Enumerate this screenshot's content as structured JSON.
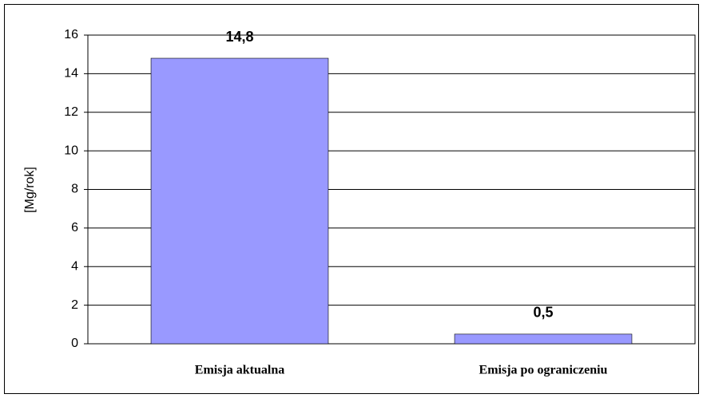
{
  "chart_data": {
    "type": "bar",
    "ylabel": "[Mg/rok]",
    "categories": [
      "Emisja aktualna",
      "Emisja po ograniczeniu"
    ],
    "values": [
      14.8,
      0.5
    ],
    "value_labels": [
      "14,8",
      "0,5"
    ],
    "color": "#9999ff",
    "ylim": [
      0,
      16
    ],
    "yticks": [
      0,
      2,
      4,
      6,
      8,
      10,
      12,
      14,
      16
    ],
    "grid": true
  }
}
